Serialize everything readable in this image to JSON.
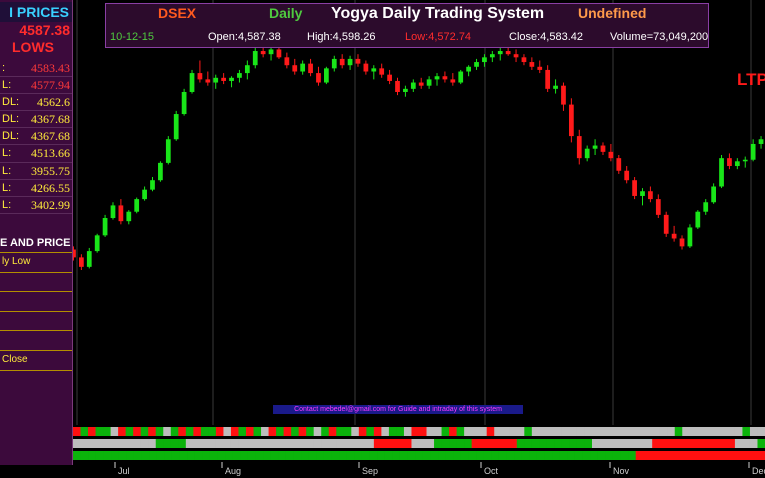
{
  "header": {
    "symbol": "DSEX",
    "period": "Daily",
    "title": "Yogya Daily Trading System",
    "status": "Undefined",
    "date": "10-12-15",
    "open": "Open:4,587.38",
    "high": "High:4,598.26",
    "low": "Low:4,572.74",
    "close": "Close:4,583.42",
    "volume": "Volume=73,049,200"
  },
  "left_panel": {
    "title": "I PRICES",
    "price": "4587.38",
    "lows_label": "LOWS",
    "rows": [
      {
        "label": ":",
        "value": "4583.43"
      },
      {
        "label": "L:",
        "value": "4577.94"
      },
      {
        "label": "DL:",
        "value": "4562.6",
        "yellow": true
      },
      {
        "label": "DL:",
        "value": "4367.68",
        "yellow": true
      },
      {
        "label": "DL:",
        "value": "4367.68",
        "yellow": true
      },
      {
        "label": "L:",
        "value": "4513.66",
        "yellow": true
      },
      {
        "label": "L:",
        "value": "3955.75",
        "yellow": true
      },
      {
        "label": "L:",
        "value": "4266.55",
        "yellow": true
      },
      {
        "label": "L:",
        "value": "3402.99",
        "yellow": true
      }
    ],
    "section_title": "E AND PRICE",
    "items": [
      "ly Low",
      "",
      "",
      "",
      "",
      "Close"
    ]
  },
  "ltp_label": "LTP",
  "banner_text": "Contact mebedel@gmail.com for Guide and intraday of this system",
  "chart_data": {
    "type": "candlestick",
    "x_labels": [
      "Jul",
      "Aug",
      "Sep",
      "Oct",
      "Nov",
      "Dec"
    ],
    "candles": [
      {
        "o": 3985,
        "h": 4050,
        "l": 3975,
        "c": 4040
      },
      {
        "o": 4040,
        "h": 4060,
        "l": 3995,
        "c": 4005
      },
      {
        "o": 4005,
        "h": 4025,
        "l": 3975,
        "c": 3985
      },
      {
        "o": 3985,
        "h": 4000,
        "l": 3965,
        "c": 3975
      },
      {
        "o": 3975,
        "h": 3990,
        "l": 3945,
        "c": 3960
      },
      {
        "o": 3960,
        "h": 3970,
        "l": 3925,
        "c": 3935
      },
      {
        "o": 3935,
        "h": 3945,
        "l": 3895,
        "c": 3905
      },
      {
        "o": 3905,
        "h": 3965,
        "l": 3900,
        "c": 3955
      },
      {
        "o": 3955,
        "h": 4010,
        "l": 3950,
        "c": 4005
      },
      {
        "o": 4005,
        "h": 4070,
        "l": 4000,
        "c": 4060
      },
      {
        "o": 4060,
        "h": 4110,
        "l": 4055,
        "c": 4100
      },
      {
        "o": 4100,
        "h": 4120,
        "l": 4040,
        "c": 4050
      },
      {
        "o": 4050,
        "h": 4085,
        "l": 4040,
        "c": 4080
      },
      {
        "o": 4080,
        "h": 4125,
        "l": 4075,
        "c": 4120
      },
      {
        "o": 4120,
        "h": 4160,
        "l": 4115,
        "c": 4150
      },
      {
        "o": 4150,
        "h": 4190,
        "l": 4145,
        "c": 4180
      },
      {
        "o": 4180,
        "h": 4240,
        "l": 4175,
        "c": 4235
      },
      {
        "o": 4235,
        "h": 4320,
        "l": 4230,
        "c": 4310
      },
      {
        "o": 4310,
        "h": 4400,
        "l": 4305,
        "c": 4390
      },
      {
        "o": 4390,
        "h": 4470,
        "l": 4385,
        "c": 4460
      },
      {
        "o": 4460,
        "h": 4530,
        "l": 4455,
        "c": 4520
      },
      {
        "o": 4520,
        "h": 4560,
        "l": 4490,
        "c": 4500
      },
      {
        "o": 4500,
        "h": 4525,
        "l": 4480,
        "c": 4490
      },
      {
        "o": 4490,
        "h": 4515,
        "l": 4470,
        "c": 4505
      },
      {
        "o": 4505,
        "h": 4520,
        "l": 4485,
        "c": 4495
      },
      {
        "o": 4495,
        "h": 4510,
        "l": 4475,
        "c": 4505
      },
      {
        "o": 4505,
        "h": 4530,
        "l": 4490,
        "c": 4520
      },
      {
        "o": 4520,
        "h": 4560,
        "l": 4500,
        "c": 4545
      },
      {
        "o": 4545,
        "h": 4600,
        "l": 4535,
        "c": 4590
      },
      {
        "o": 4590,
        "h": 4625,
        "l": 4570,
        "c": 4580
      },
      {
        "o": 4580,
        "h": 4610,
        "l": 4560,
        "c": 4595
      },
      {
        "o": 4595,
        "h": 4605,
        "l": 4565,
        "c": 4570
      },
      {
        "o": 4570,
        "h": 4585,
        "l": 4535,
        "c": 4545
      },
      {
        "o": 4545,
        "h": 4565,
        "l": 4515,
        "c": 4525
      },
      {
        "o": 4525,
        "h": 4560,
        "l": 4515,
        "c": 4550
      },
      {
        "o": 4550,
        "h": 4565,
        "l": 4510,
        "c": 4520
      },
      {
        "o": 4520,
        "h": 4540,
        "l": 4480,
        "c": 4490
      },
      {
        "o": 4490,
        "h": 4540,
        "l": 4485,
        "c": 4535
      },
      {
        "o": 4535,
        "h": 4575,
        "l": 4525,
        "c": 4565
      },
      {
        "o": 4565,
        "h": 4580,
        "l": 4535,
        "c": 4545
      },
      {
        "o": 4545,
        "h": 4575,
        "l": 4530,
        "c": 4565
      },
      {
        "o": 4565,
        "h": 4580,
        "l": 4540,
        "c": 4550
      },
      {
        "o": 4550,
        "h": 4560,
        "l": 4515,
        "c": 4525
      },
      {
        "o": 4525,
        "h": 4545,
        "l": 4500,
        "c": 4535
      },
      {
        "o": 4535,
        "h": 4550,
        "l": 4505,
        "c": 4515
      },
      {
        "o": 4515,
        "h": 4530,
        "l": 4485,
        "c": 4495
      },
      {
        "o": 4495,
        "h": 4505,
        "l": 4450,
        "c": 4460
      },
      {
        "o": 4460,
        "h": 4480,
        "l": 4445,
        "c": 4470
      },
      {
        "o": 4470,
        "h": 4500,
        "l": 4460,
        "c": 4490
      },
      {
        "o": 4490,
        "h": 4505,
        "l": 4470,
        "c": 4480
      },
      {
        "o": 4480,
        "h": 4510,
        "l": 4470,
        "c": 4500
      },
      {
        "o": 4500,
        "h": 4520,
        "l": 4480,
        "c": 4510
      },
      {
        "o": 4510,
        "h": 4525,
        "l": 4490,
        "c": 4500
      },
      {
        "o": 4500,
        "h": 4520,
        "l": 4480,
        "c": 4490
      },
      {
        "o": 4490,
        "h": 4530,
        "l": 4485,
        "c": 4525
      },
      {
        "o": 4525,
        "h": 4545,
        "l": 4510,
        "c": 4540
      },
      {
        "o": 4540,
        "h": 4565,
        "l": 4530,
        "c": 4555
      },
      {
        "o": 4555,
        "h": 4580,
        "l": 4540,
        "c": 4570
      },
      {
        "o": 4570,
        "h": 4590,
        "l": 4555,
        "c": 4580
      },
      {
        "o": 4580,
        "h": 4600,
        "l": 4560,
        "c": 4590
      },
      {
        "o": 4590,
        "h": 4610,
        "l": 4575,
        "c": 4580
      },
      {
        "o": 4580,
        "h": 4595,
        "l": 4555,
        "c": 4570
      },
      {
        "o": 4570,
        "h": 4580,
        "l": 4545,
        "c": 4555
      },
      {
        "o": 4555,
        "h": 4570,
        "l": 4530,
        "c": 4540
      },
      {
        "o": 4540,
        "h": 4560,
        "l": 4520,
        "c": 4530
      },
      {
        "o": 4530,
        "h": 4545,
        "l": 4460,
        "c": 4470
      },
      {
        "o": 4470,
        "h": 4500,
        "l": 4455,
        "c": 4480
      },
      {
        "o": 4480,
        "h": 4490,
        "l": 4400,
        "c": 4420
      },
      {
        "o": 4420,
        "h": 4440,
        "l": 4300,
        "c": 4320
      },
      {
        "o": 4320,
        "h": 4340,
        "l": 4230,
        "c": 4250
      },
      {
        "o": 4250,
        "h": 4290,
        "l": 4240,
        "c": 4280
      },
      {
        "o": 4280,
        "h": 4310,
        "l": 4260,
        "c": 4290
      },
      {
        "o": 4290,
        "h": 4300,
        "l": 4260,
        "c": 4270
      },
      {
        "o": 4270,
        "h": 4295,
        "l": 4240,
        "c": 4250
      },
      {
        "o": 4250,
        "h": 4260,
        "l": 4200,
        "c": 4210
      },
      {
        "o": 4210,
        "h": 4225,
        "l": 4170,
        "c": 4180
      },
      {
        "o": 4180,
        "h": 4190,
        "l": 4120,
        "c": 4130
      },
      {
        "o": 4130,
        "h": 4155,
        "l": 4100,
        "c": 4145
      },
      {
        "o": 4145,
        "h": 4160,
        "l": 4110,
        "c": 4120
      },
      {
        "o": 4120,
        "h": 4135,
        "l": 4060,
        "c": 4070
      },
      {
        "o": 4070,
        "h": 4080,
        "l": 4000,
        "c": 4010
      },
      {
        "o": 4010,
        "h": 4035,
        "l": 3985,
        "c": 3995
      },
      {
        "o": 3995,
        "h": 4005,
        "l": 3960,
        "c": 3970
      },
      {
        "o": 3970,
        "h": 4040,
        "l": 3965,
        "c": 4030
      },
      {
        "o": 4030,
        "h": 4085,
        "l": 4025,
        "c": 4080
      },
      {
        "o": 4080,
        "h": 4120,
        "l": 4070,
        "c": 4110
      },
      {
        "o": 4110,
        "h": 4170,
        "l": 4105,
        "c": 4160
      },
      {
        "o": 4160,
        "h": 4260,
        "l": 4155,
        "c": 4250
      },
      {
        "o": 4250,
        "h": 4265,
        "l": 4215,
        "c": 4225
      },
      {
        "o": 4225,
        "h": 4250,
        "l": 4215,
        "c": 4240
      },
      {
        "o": 4240,
        "h": 4255,
        "l": 4220,
        "c": 4245
      },
      {
        "o": 4245,
        "h": 4310,
        "l": 4240,
        "c": 4295
      },
      {
        "o": 4295,
        "h": 4320,
        "l": 4280,
        "c": 4310
      }
    ],
    "indicator_rows": [
      [
        "r",
        "g",
        "r",
        "g",
        "g",
        "w",
        "r",
        "g",
        "r",
        "g",
        "r",
        "g",
        "w",
        "g",
        "r",
        "g",
        "r",
        "g",
        "g",
        "r",
        "w",
        "r",
        "g",
        "r",
        "g",
        "w",
        "r",
        "g",
        "r",
        "g",
        "r",
        "g",
        "w",
        "g",
        "r",
        "g",
        "g",
        "w",
        "r",
        "g",
        "r",
        "w",
        "g",
        "g",
        "w",
        "r",
        "r",
        "w",
        "w",
        "g",
        "r",
        "g",
        "w",
        "w",
        "w",
        "r",
        "w",
        "w",
        "w",
        "w",
        "g",
        "w",
        "w",
        "w",
        "w",
        "w",
        "w",
        "w",
        "w",
        "w",
        "w",
        "w",
        "w",
        "w",
        "w",
        "w",
        "w",
        "w",
        "w",
        "w",
        "g",
        "w",
        "w",
        "w",
        "w",
        "w",
        "w",
        "w",
        "w",
        "g",
        "w",
        "w"
      ],
      [
        "w",
        "w",
        "w",
        "w",
        "w",
        "w",
        "w",
        "w",
        "w",
        "w",
        "w",
        "g",
        "g",
        "g",
        "g",
        "w",
        "w",
        "w",
        "w",
        "w",
        "w",
        "w",
        "w",
        "w",
        "w",
        "w",
        "w",
        "w",
        "w",
        "w",
        "w",
        "w",
        "w",
        "w",
        "w",
        "w",
        "w",
        "w",
        "w",
        "w",
        "r",
        "r",
        "r",
        "r",
        "r",
        "w",
        "w",
        "w",
        "g",
        "g",
        "g",
        "g",
        "g",
        "r",
        "r",
        "r",
        "r",
        "r",
        "r",
        "g",
        "g",
        "g",
        "g",
        "g",
        "g",
        "g",
        "g",
        "g",
        "g",
        "w",
        "w",
        "w",
        "w",
        "w",
        "w",
        "w",
        "w",
        "r",
        "r",
        "r",
        "r",
        "r",
        "r",
        "r",
        "r",
        "r",
        "r",
        "r",
        "w",
        "w",
        "w",
        "g"
      ],
      [
        "g",
        "g",
        "g",
        "g",
        "g",
        "g",
        "g",
        "g",
        "g",
        "g",
        "g",
        "g",
        "g",
        "g",
        "g",
        "g",
        "g",
        "g",
        "g",
        "g",
        "g",
        "g",
        "g",
        "g",
        "g",
        "g",
        "g",
        "g",
        "g",
        "g",
        "g",
        "g",
        "g",
        "g",
        "g",
        "g",
        "g",
        "g",
        "g",
        "g",
        "g",
        "g",
        "g",
        "g",
        "g",
        "g",
        "g",
        "g",
        "g",
        "g",
        "g",
        "g",
        "g",
        "g",
        "g",
        "g",
        "g",
        "g",
        "g",
        "g",
        "g",
        "g",
        "g",
        "g",
        "g",
        "g",
        "g",
        "g",
        "g",
        "g",
        "g",
        "g",
        "g",
        "g",
        "r",
        "r",
        "r",
        "r",
        "r",
        "r",
        "r",
        "r",
        "r",
        "r",
        "r",
        "r",
        "r",
        "r",
        "r",
        "r",
        "r"
      ]
    ]
  }
}
